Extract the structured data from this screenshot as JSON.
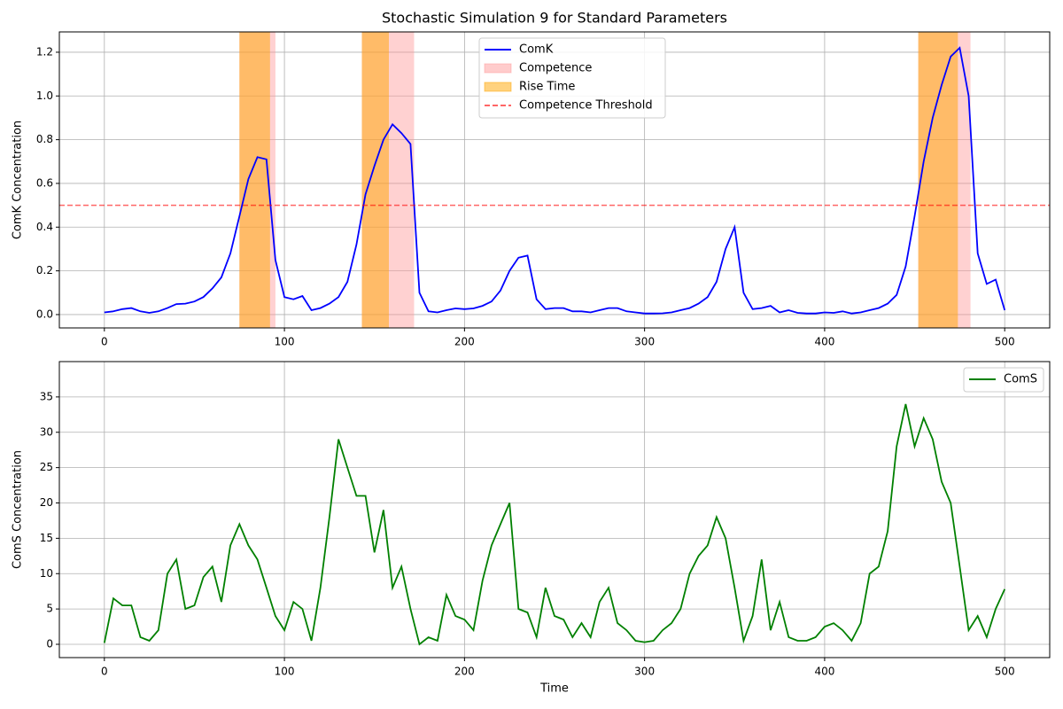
{
  "chart_data": [
    {
      "type": "line",
      "title": "Stochastic Simulation 9 for Standard Parameters",
      "ylabel": "ComK Concentration",
      "x": [
        0,
        5,
        10,
        15,
        20,
        25,
        30,
        35,
        40,
        45,
        50,
        55,
        60,
        65,
        70,
        75,
        80,
        85,
        90,
        95,
        100,
        105,
        110,
        115,
        120,
        125,
        130,
        135,
        140,
        145,
        150,
        155,
        160,
        165,
        170,
        175,
        180,
        185,
        190,
        195,
        200,
        205,
        210,
        215,
        220,
        225,
        230,
        235,
        240,
        245,
        250,
        255,
        260,
        265,
        270,
        275,
        280,
        285,
        290,
        295,
        300,
        305,
        310,
        315,
        320,
        325,
        330,
        335,
        340,
        345,
        350,
        355,
        360,
        365,
        370,
        375,
        380,
        385,
        390,
        395,
        400,
        405,
        410,
        415,
        420,
        425,
        430,
        435,
        440,
        445,
        450,
        455,
        460,
        465,
        470,
        475,
        480,
        485,
        490,
        495,
        500
      ],
      "series": [
        {
          "name": "ComK",
          "color": "#0000ff",
          "values": [
            0.01,
            0.015,
            0.025,
            0.03,
            0.015,
            0.008,
            0.015,
            0.03,
            0.048,
            0.05,
            0.06,
            0.08,
            0.12,
            0.17,
            0.28,
            0.45,
            0.62,
            0.72,
            0.71,
            0.25,
            0.08,
            0.07,
            0.085,
            0.02,
            0.03,
            0.05,
            0.08,
            0.15,
            0.32,
            0.55,
            0.68,
            0.8,
            0.87,
            0.83,
            0.78,
            0.1,
            0.015,
            0.01,
            0.02,
            0.028,
            0.025,
            0.028,
            0.04,
            0.06,
            0.11,
            0.2,
            0.26,
            0.27,
            0.07,
            0.025,
            0.03,
            0.03,
            0.015,
            0.015,
            0.01,
            0.02,
            0.03,
            0.03,
            0.015,
            0.01,
            0.005,
            0.005,
            0.006,
            0.01,
            0.02,
            0.03,
            0.05,
            0.08,
            0.15,
            0.3,
            0.4,
            0.1,
            0.025,
            0.03,
            0.04,
            0.01,
            0.02,
            0.008,
            0.005,
            0.005,
            0.01,
            0.008,
            0.015,
            0.005,
            0.01,
            0.02,
            0.03,
            0.05,
            0.09,
            0.22,
            0.45,
            0.7,
            0.9,
            1.05,
            1.18,
            1.22,
            1.0,
            0.28,
            0.14,
            0.16,
            0.02
          ]
        }
      ],
      "bands": [
        {
          "name": "Competence",
          "color": "#ff9999",
          "ranges": [
            [
              75,
              95
            ],
            [
              143,
              172
            ],
            [
              452,
              481
            ]
          ]
        },
        {
          "name": "Rise Time",
          "color": "#ffa500",
          "ranges": [
            [
              75,
              92
            ],
            [
              143,
              158
            ],
            [
              452,
              474
            ]
          ]
        }
      ],
      "hlines": [
        {
          "name": "Competence Threshold",
          "color": "#ff0000",
          "value": 0.5
        }
      ],
      "xlim": [
        -25,
        525
      ],
      "xticks": [
        0,
        100,
        200,
        300,
        400,
        500
      ],
      "ylim": [
        -0.061,
        1.293
      ],
      "yticks": [
        {
          "value": 0,
          "label": "0.0"
        },
        0.2,
        0.4,
        0.6,
        0.8,
        {
          "value": 1,
          "label": "1.0"
        },
        1.2
      ],
      "grid": true,
      "legend": "upper center"
    },
    {
      "type": "line",
      "xlabel": "Time",
      "ylabel": "ComS Concentration",
      "x": [
        0,
        5,
        10,
        15,
        20,
        25,
        30,
        35,
        40,
        45,
        50,
        55,
        60,
        65,
        70,
        75,
        80,
        85,
        90,
        95,
        100,
        105,
        110,
        115,
        120,
        125,
        130,
        135,
        140,
        145,
        150,
        155,
        160,
        165,
        170,
        175,
        180,
        185,
        190,
        195,
        200,
        205,
        210,
        215,
        220,
        225,
        230,
        235,
        240,
        245,
        250,
        255,
        260,
        265,
        270,
        275,
        280,
        285,
        290,
        295,
        300,
        305,
        310,
        315,
        320,
        325,
        330,
        335,
        340,
        345,
        350,
        355,
        360,
        365,
        370,
        375,
        380,
        385,
        390,
        395,
        400,
        405,
        410,
        415,
        420,
        425,
        430,
        435,
        440,
        445,
        450,
        455,
        460,
        465,
        470,
        475,
        480,
        485,
        490,
        495,
        500
      ],
      "series": [
        {
          "name": "ComS",
          "color": "#008000",
          "values": [
            0.2,
            6.5,
            5.5,
            5.5,
            1,
            0.5,
            2,
            10,
            12,
            5,
            5.5,
            9.5,
            11,
            6,
            14,
            17,
            14,
            12,
            8,
            4,
            2,
            6,
            5,
            0.5,
            8,
            18,
            29,
            25,
            21,
            21,
            13,
            19,
            8,
            11,
            5,
            0,
            1,
            0.5,
            7,
            4,
            3.5,
            2,
            9,
            14,
            17,
            20,
            5,
            4.5,
            1,
            8,
            4,
            3.5,
            1,
            3,
            1,
            6,
            8,
            3,
            2,
            0.5,
            0.3,
            0.5,
            2,
            3,
            5,
            10,
            12.5,
            14,
            18,
            15,
            8,
            0.5,
            4,
            12,
            2,
            6,
            1,
            0.5,
            0.5,
            1,
            2.5,
            3,
            2,
            0.5,
            3,
            10,
            11,
            16,
            28,
            34,
            28,
            32,
            29,
            23,
            20,
            11,
            2,
            4,
            1,
            5,
            7.8
          ]
        }
      ],
      "xlim": [
        -25,
        525
      ],
      "xticks": [
        0,
        100,
        200,
        300,
        400,
        500
      ],
      "ylim": [
        -1.88,
        40
      ],
      "yticks": [
        0,
        5,
        10,
        15,
        20,
        25,
        30,
        35
      ],
      "grid": true,
      "legend": "upper right"
    }
  ]
}
